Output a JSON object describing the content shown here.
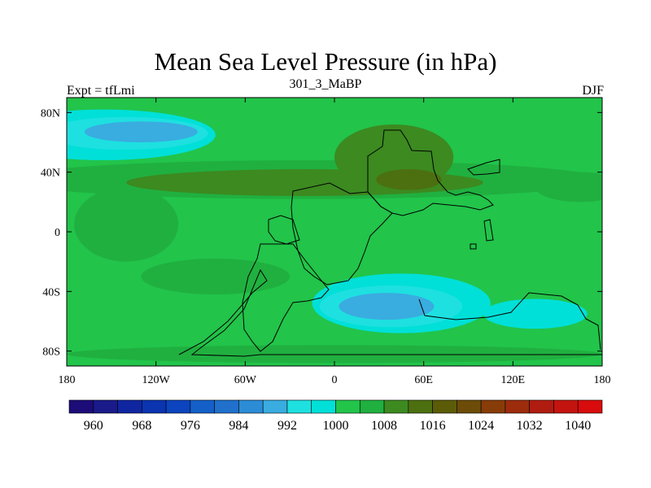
{
  "title": "Mean Sea Level Pressure (in hPa)",
  "subtitle_center": "301_3_MaBP",
  "subtitle_left": "Expt = tfLmi",
  "subtitle_right": "DJF",
  "map": {
    "lon_range": [
      -180,
      180
    ],
    "lat_range": [
      -90,
      90
    ],
    "x_ticks": [
      {
        "value": -180,
        "label": "180"
      },
      {
        "value": -120,
        "label": "120W"
      },
      {
        "value": -60,
        "label": "60W"
      },
      {
        "value": 0,
        "label": "0"
      },
      {
        "value": 60,
        "label": "60E"
      },
      {
        "value": 120,
        "label": "120E"
      },
      {
        "value": 180,
        "label": "180"
      }
    ],
    "y_ticks": [
      {
        "value": 80,
        "label": "80N"
      },
      {
        "value": 40,
        "label": "40N"
      },
      {
        "value": 0,
        "label": "0"
      },
      {
        "value": -40,
        "label": "40S"
      },
      {
        "value": -80,
        "label": "80S"
      }
    ],
    "background_level": 1000,
    "regions": [
      {
        "name": "low-north-pacific",
        "level": 996,
        "lon": -155,
        "lat": 65,
        "rlon": 75,
        "rlat": 17
      },
      {
        "name": "low-north-pacific-core",
        "level": 992,
        "lon": -140,
        "lat": 66,
        "rlon": 55,
        "rlat": 11
      },
      {
        "name": "low-north-pacific-deep",
        "level": 988,
        "lon": -130,
        "lat": 67,
        "rlon": 38,
        "rlat": 7
      },
      {
        "name": "low-antarctic-east",
        "level": 996,
        "lon": 45,
        "lat": -48,
        "rlon": 60,
        "rlat": 20
      },
      {
        "name": "low-antarctic-core",
        "level": 992,
        "lon": 38,
        "lat": -50,
        "rlon": 48,
        "rlat": 14
      },
      {
        "name": "low-antarctic-deep",
        "level": 988,
        "lon": 35,
        "lat": -50,
        "rlon": 32,
        "rlat": 9
      },
      {
        "name": "low-south-pacific-east",
        "level": 996,
        "lon": 135,
        "lat": -55,
        "rlon": 35,
        "rlat": 10
      },
      {
        "name": "high-subtropical-band",
        "level": 1004,
        "lon": -20,
        "lat": 35,
        "rlon": 200,
        "rlat": 13
      },
      {
        "name": "high-subtropical-west-pacific",
        "level": 1004,
        "lon": 165,
        "lat": 30,
        "rlon": 30,
        "rlat": 10
      },
      {
        "name": "high-asia",
        "level": 1008,
        "lon": 40,
        "lat": 50,
        "rlon": 40,
        "rlat": 22
      },
      {
        "name": "high-subtropical-core",
        "level": 1008,
        "lon": -20,
        "lat": 33,
        "rlon": 120,
        "rlat": 9
      },
      {
        "name": "high-subtropical-max",
        "level": 1012,
        "lon": 50,
        "lat": 35,
        "rlon": 22,
        "rlat": 7
      },
      {
        "name": "high-equatorial-tongue",
        "level": 1004,
        "lon": -140,
        "lat": 5,
        "rlon": 35,
        "rlat": 25
      },
      {
        "name": "high-south-atlantic",
        "level": 1004,
        "lon": -80,
        "lat": -30,
        "rlon": 50,
        "rlat": 12
      },
      {
        "name": "high-south-pole",
        "level": 1004,
        "lon": 0,
        "lat": -82,
        "rlon": 180,
        "rlat": 6
      }
    ]
  },
  "colorbar": {
    "levels": [
      960,
      964,
      968,
      972,
      976,
      980,
      984,
      988,
      992,
      996,
      1000,
      1004,
      1008,
      1012,
      1016,
      1020,
      1024,
      1028,
      1032,
      1036,
      1040
    ],
    "colors": [
      "#1c0c78",
      "#1a1a8a",
      "#1026a0",
      "#0a34b0",
      "#0c44bf",
      "#1460c8",
      "#2070cc",
      "#2c8cd6",
      "#39ace0",
      "#1ee0e0",
      "#00e0d8",
      "#22c44a",
      "#20b040",
      "#3c8a20",
      "#4c7010",
      "#5c5c08",
      "#6c4c08",
      "#883c08",
      "#9c2c0c",
      "#b01c10",
      "#c41410",
      "#d80c0c"
    ],
    "labels": [
      "960",
      "968",
      "976",
      "984",
      "992",
      "1000",
      "1008",
      "1016",
      "1024",
      "1032",
      "1040"
    ]
  }
}
